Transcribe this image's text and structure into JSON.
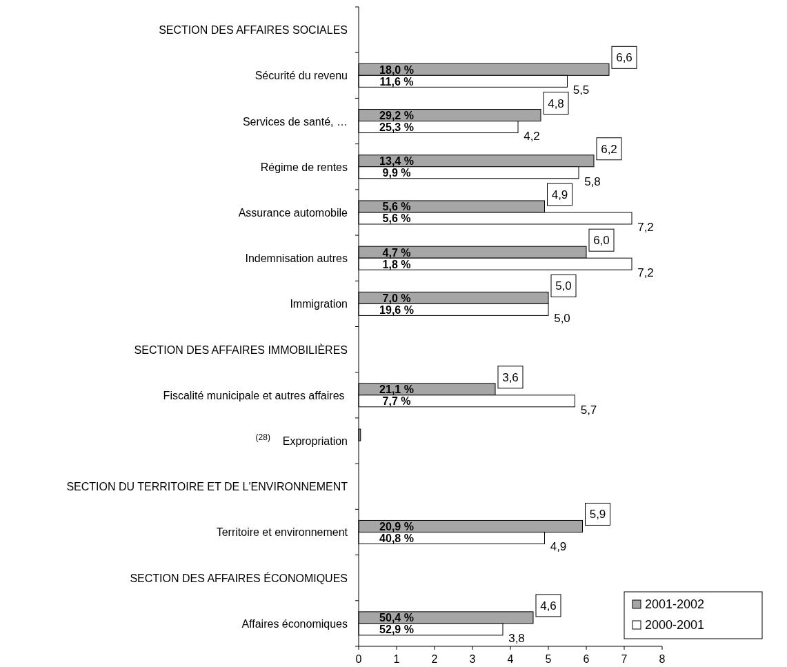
{
  "chart_data": {
    "type": "bar",
    "orientation": "horizontal",
    "categories": [
      "SECTION DES AFFAIRES SOCIALES",
      "Sécurité du revenu",
      "Services de santé, …",
      "Régime de rentes",
      "Assurance automobile",
      "Indemnisation autres",
      "Immigration",
      "SECTION DES AFFAIRES IMMOBILIÈRES",
      "Fiscalité municipale et autres affaires ",
      "$^{(28)}$    Expropriation",
      "SECTION DU TERRITOIRE ET DE L'ENVIRONNEMENT",
      "Territoire et environnement",
      "SECTION DES AFFAIRES ÉCONOMIQUES",
      "Affaires économiques"
    ],
    "series": [
      {
        "name": "2001-2002",
        "color": "#a6a6a6",
        "values": [
          null,
          6.6,
          4.8,
          6.2,
          4.9,
          6.0,
          5.0,
          null,
          3.6,
          0.05,
          null,
          5.9,
          null,
          4.6
        ],
        "value_labels": [
          null,
          "6,6",
          "4,8",
          "6,2",
          "4,9",
          "6,0",
          "5,0",
          null,
          "3,6",
          null,
          null,
          "5,9",
          null,
          "4,6"
        ]
      },
      {
        "name": "2000-2001",
        "color": "#ffffff",
        "values": [
          null,
          5.5,
          4.2,
          5.8,
          7.2,
          7.2,
          5.0,
          null,
          5.7,
          null,
          null,
          4.9,
          null,
          3.8
        ],
        "value_labels": [
          null,
          "5,5",
          "4,2",
          "5,8",
          "7,2",
          "7,2",
          "5,0",
          null,
          "5,7",
          null,
          null,
          "4,9",
          null,
          "3,8"
        ]
      }
    ],
    "xlim": [
      0,
      8
    ],
    "xticks": [
      0,
      1,
      2,
      3,
      4,
      5,
      6,
      7,
      8
    ],
    "grid": false,
    "legend": "bottom right",
    "annotations": [
      "18,0 %",
      "11,6 %",
      "29,2 %",
      "25,3 %",
      "13,4 %",
      "9,9 %",
      "5,6 %",
      "5,6 %",
      "4,7 %",
      "1,8 %",
      "7,0 %",
      "19,6 %",
      "21,1 %",
      "7,7 %",
      "20,9 %",
      "40,8 %",
      "50,4 %",
      "52,9 %"
    ]
  }
}
